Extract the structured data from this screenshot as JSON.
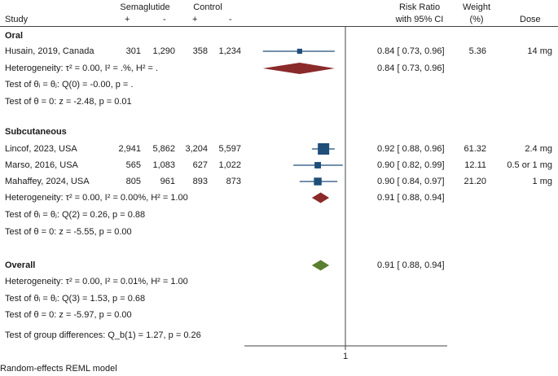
{
  "header": {
    "study": "Study",
    "semaglutide": "Semaglutide",
    "control": "Control",
    "plus1": "+",
    "minus1": "-",
    "plus2": "+",
    "minus2": "-",
    "risk_ratio": "Risk Ratio",
    "with_ci": "with 95% CI",
    "weight": "Weight",
    "weight_unit": "(%)",
    "dose": "Dose"
  },
  "groups": [
    {
      "label": "Oral",
      "studies": [
        {
          "study": "Husain, 2019, Canada",
          "sema_pos": "301",
          "sema_neg": "1,290",
          "ctrl_pos": "358",
          "ctrl_neg": "1,234",
          "ci_text": "0.84 [ 0.73,  0.96]",
          "weight": "5.36",
          "dose": "14 mg"
        }
      ],
      "pooled_ci_text": "0.84 [ 0.73,  0.96]",
      "heterogeneity": "Heterogeneity: τ² = 0.00, I² = .%, H² = .",
      "test_q": "Test of θᵢ = θⱼ: Q(0) = -0.00, p = .",
      "test_z": "Test of θ = 0: z = -2.48, p = 0.01"
    },
    {
      "label": "Subcutaneous",
      "studies": [
        {
          "study": "Lincof, 2023, USA",
          "sema_pos": "2,941",
          "sema_neg": "5,862",
          "ctrl_pos": "3,204",
          "ctrl_neg": "5,597",
          "ci_text": "0.92 [ 0.88,  0.96]",
          "weight": "61.32",
          "dose": "2.4 mg"
        },
        {
          "study": "Marso, 2016, USA",
          "sema_pos": "565",
          "sema_neg": "1,083",
          "ctrl_pos": "627",
          "ctrl_neg": "1,022",
          "ci_text": "0.90 [ 0.82,  0.99]",
          "weight": "12.11",
          "dose": "0.5 or 1 mg"
        },
        {
          "study": "Mahaffey, 2024, USA",
          "sema_pos": "805",
          "sema_neg": "961",
          "ctrl_pos": "893",
          "ctrl_neg": "873",
          "ci_text": "0.90 [ 0.84,  0.97]",
          "weight": "21.20",
          "dose": "1 mg"
        }
      ],
      "pooled_ci_text": "0.91 [ 0.88,  0.94]",
      "heterogeneity": "Heterogeneity: τ² = 0.00, I² = 0.00%, H² = 1.00",
      "test_q": "Test of θᵢ = θⱼ: Q(2) = 0.26, p = 0.88",
      "test_z": "Test of θ = 0: z = -5.55, p = 0.00"
    }
  ],
  "overall": {
    "label": "Overall",
    "ci_text": "0.91 [ 0.88,  0.94]",
    "heterogeneity": "Heterogeneity: τ² = 0.00, I² = 0.01%, H² = 1.00",
    "test_q": "Test of θᵢ = θⱼ: Q(3) = 1.53, p = 0.68",
    "test_z": "Test of θ = 0: z = -5.97, p = 0.00"
  },
  "group_diff": "Test of group differences: Q_b(1) = 1.27, p = 0.26",
  "footer": "Random-effects REML model",
  "colors": {
    "subgroup_diamond": "#8b2a2a",
    "overall_diamond": "#5a7f2f",
    "marker": "#1f4e79",
    "ci_line": "#1f4e79"
  },
  "chart_data": {
    "type": "forest",
    "reference_value": 1,
    "reference_label": "1",
    "x_scale": "log",
    "studies": [
      {
        "name": "Husain, 2019, Canada",
        "group": "Oral",
        "rr": 0.84,
        "lower": 0.73,
        "upper": 0.96,
        "weight": 5.36
      },
      {
        "name": "Lincof, 2023, USA",
        "group": "Subcutaneous",
        "rr": 0.92,
        "lower": 0.88,
        "upper": 0.96,
        "weight": 61.32
      },
      {
        "name": "Marso, 2016, USA",
        "group": "Subcutaneous",
        "rr": 0.9,
        "lower": 0.82,
        "upper": 0.99,
        "weight": 12.11
      },
      {
        "name": "Mahaffey, 2024, USA",
        "group": "Subcutaneous",
        "rr": 0.9,
        "lower": 0.84,
        "upper": 0.97,
        "weight": 21.2
      }
    ],
    "pooled": [
      {
        "name": "Oral",
        "rr": 0.84,
        "lower": 0.73,
        "upper": 0.96
      },
      {
        "name": "Subcutaneous",
        "rr": 0.91,
        "lower": 0.88,
        "upper": 0.94
      },
      {
        "name": "Overall",
        "rr": 0.91,
        "lower": 0.88,
        "upper": 0.94
      }
    ]
  }
}
